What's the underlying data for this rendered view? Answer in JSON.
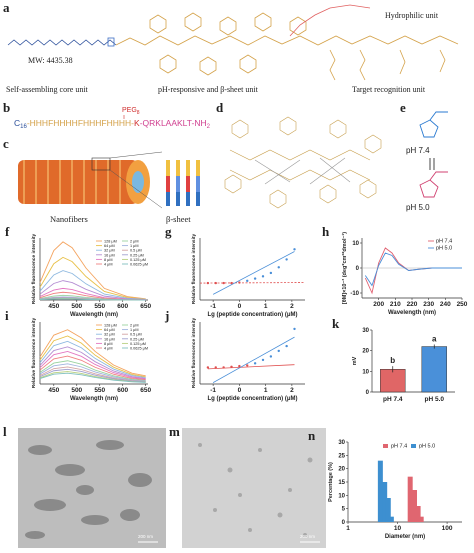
{
  "panel_a": {
    "label": "a",
    "mw": "MW: 4435.38",
    "hydrophilic": "Hydrophilic unit",
    "core": "Self-assembling core unit",
    "ph": "pH-responsive and β-sheet unit",
    "target": "Target recognition unit"
  },
  "panel_b": {
    "label": "b",
    "seq_c": "C",
    "seq_c_sub": "16",
    "seq_main": "-HHHFHHHHFHHHFHHHH-",
    "seq_k": "K",
    "peg": "PEG",
    "peg_sub": "8",
    "seq_end": "-QRKLAAKLT-NH",
    "seq_end_sub": "2"
  },
  "panel_c": {
    "label": "c",
    "nanofibers": "Nanofibers",
    "sheet": "β-sheet"
  },
  "panel_d": {
    "label": "d"
  },
  "panel_e": {
    "label": "e",
    "ph74": "pH 7.4",
    "ph50": "pH 5.0"
  },
  "panel_l": {
    "label": "l",
    "scale": "200 nm"
  },
  "panel_m": {
    "label": "m",
    "scale": "200 nm"
  },
  "chart_data": [
    {
      "type": "line",
      "label": "f",
      "xlabel": "Wavelength (nm)",
      "ylabel": "Relative fluorescence intensity",
      "xlim": [
        420,
        655
      ],
      "ylim": [
        0,
        80
      ],
      "xticks": [
        450,
        500,
        550,
        600,
        650
      ],
      "legend": "top-right",
      "legend_columns": 2,
      "x": [
        420,
        450,
        470,
        490,
        520,
        560,
        610,
        650
      ],
      "series": [
        {
          "name": "128 μM",
          "color": "#f4a460",
          "values": [
            22.5,
            63.8,
            75,
            67.5,
            41.3,
            15,
            4.5,
            1.5
          ]
        },
        {
          "name": "64 μM",
          "color": "#e8c14a",
          "values": [
            16.5,
            46.8,
            55,
            49.5,
            30.3,
            11,
            3.3,
            1.1
          ]
        },
        {
          "name": "32 μM",
          "color": "#8fb9e0",
          "values": [
            11.4,
            32.3,
            38,
            34.2,
            20.9,
            7.6,
            2.3,
            0.8
          ]
        },
        {
          "name": "16 μM",
          "color": "#b58fd3",
          "values": [
            7.5,
            21.3,
            25,
            22.5,
            13.8,
            5,
            1.5,
            0.5
          ]
        },
        {
          "name": "8 μM",
          "color": "#e377c2",
          "values": [
            4.5,
            12.8,
            15,
            13.5,
            8.3,
            3,
            0.9,
            0.3
          ]
        },
        {
          "name": "4 μM",
          "color": "#f08080",
          "values": [
            3,
            8.5,
            10,
            9,
            5.5,
            2,
            0.6,
            0.2
          ]
        },
        {
          "name": "2 μM",
          "color": "#9bd3a0",
          "values": [
            1.8,
            5.1,
            6,
            5.4,
            3.3,
            1.2,
            0.4,
            0.1
          ]
        },
        {
          "name": "1 μM",
          "color": "#a0b4de",
          "values": [
            1.2,
            3.4,
            4,
            3.6,
            2.2,
            0.8,
            0.2,
            0.1
          ]
        },
        {
          "name": "0.5 μM",
          "color": "#d4a5a5",
          "values": [
            0.9,
            2.6,
            3,
            2.7,
            1.7,
            0.6,
            0.2,
            0.1
          ]
        },
        {
          "name": "0.25 μM",
          "color": "#a0a0d0",
          "values": [
            0.8,
            2.1,
            2.5,
            2.3,
            1.4,
            0.5,
            0.2,
            0.1
          ]
        },
        {
          "name": "0.125 μM",
          "color": "#b8d080",
          "values": [
            0.6,
            1.7,
            2,
            1.8,
            1.1,
            0.4,
            0.1,
            0
          ]
        },
        {
          "name": "0.0625 μM",
          "color": "#80c0c0",
          "values": [
            0.5,
            1.3,
            1.5,
            1.4,
            0.8,
            0.3,
            0.1,
            0
          ]
        }
      ]
    },
    {
      "type": "scatter",
      "label": "g",
      "xlabel": "Lg (peptide concentration) (μM)",
      "ylabel": "Relative fluorescence intensity",
      "xlim": [
        -1.5,
        2.5
      ],
      "ylim": [
        -15,
        40
      ],
      "xticks": [
        -1,
        0,
        1,
        2
      ],
      "series": [
        {
          "color": "#e05050",
          "x": [
            -1.2,
            -0.9,
            -0.6,
            -0.3,
            0
          ],
          "values": [
            0,
            0,
            0,
            0,
            0.5
          ]
        },
        {
          "color": "#4a8fd8",
          "x": [
            0.3,
            0.6,
            0.9,
            1.2,
            1.5,
            1.8,
            2.1
          ],
          "values": [
            2,
            4,
            6,
            9,
            14,
            21,
            30
          ]
        }
      ],
      "fits": [
        {
          "color": "#e05050",
          "dashed": true,
          "x": [
            -1.5,
            2.5
          ],
          "values": [
            0,
            0.5
          ]
        },
        {
          "color": "#4a8fd8",
          "dashed": false,
          "x": [
            -1,
            2.1
          ],
          "values": [
            -10,
            28
          ]
        }
      ]
    },
    {
      "type": "line",
      "label": "h",
      "xlabel": "Wavelength (nm)",
      "ylabel": "[θM]×10⁻³ (deg*cm²*dmol⁻¹)",
      "xlim": [
        190,
        250
      ],
      "ylim": [
        -12,
        12
      ],
      "xticks": [
        200,
        210,
        220,
        230,
        240,
        250
      ],
      "yticks": [
        -10,
        0,
        10
      ],
      "legend": "top-right",
      "legend_columns": 1,
      "zero_line": true,
      "x": [
        192,
        196,
        200,
        204,
        208,
        212,
        218,
        224,
        232,
        240,
        250
      ],
      "series": [
        {
          "name": "pH 7.4",
          "color": "#e06070",
          "values": [
            -4,
            -10,
            2,
            8,
            6,
            2,
            -1,
            -0.5,
            0,
            0,
            0
          ]
        },
        {
          "name": "pH 5.0",
          "color": "#4a8fd8",
          "values": [
            -3,
            -7,
            1,
            6,
            5,
            1.5,
            -1,
            -0.5,
            0,
            0,
            0
          ]
        }
      ]
    },
    {
      "type": "line",
      "label": "i",
      "xlabel": "Wavelength (nm)",
      "ylabel": "Relative fluorescence intensity",
      "xlim": [
        420,
        655
      ],
      "ylim": [
        0,
        80
      ],
      "xticks": [
        450,
        500,
        550,
        600,
        650
      ],
      "legend": "top-right",
      "legend_columns": 2,
      "x": [
        420,
        450,
        480,
        510,
        540,
        580,
        620,
        650
      ],
      "series": [
        {
          "name": "128 μM",
          "color": "#f4a460",
          "values": [
            35,
            63,
            70,
            59.5,
            42,
            24.5,
            14,
            10.5
          ]
        },
        {
          "name": "64 μM",
          "color": "#e8c14a",
          "values": [
            31,
            55.8,
            62,
            52.7,
            37.2,
            21.7,
            12.4,
            9.3
          ]
        },
        {
          "name": "32 μM",
          "color": "#8fb9e0",
          "values": [
            27.5,
            49.5,
            55,
            46.8,
            33,
            19.3,
            11,
            8.3
          ]
        },
        {
          "name": "16 μM",
          "color": "#b58fd3",
          "values": [
            24,
            43.2,
            48,
            40.8,
            28.8,
            16.8,
            9.6,
            7.2
          ]
        },
        {
          "name": "8 μM",
          "color": "#e377c2",
          "values": [
            21,
            37.8,
            42,
            35.7,
            25.2,
            14.7,
            8.4,
            6.3
          ]
        },
        {
          "name": "4 μM",
          "color": "#f08080",
          "values": [
            18,
            32.4,
            36,
            30.6,
            21.6,
            12.6,
            7.2,
            5.4
          ]
        },
        {
          "name": "2 μM",
          "color": "#9bd3a0",
          "values": [
            15,
            27,
            30,
            25.5,
            18,
            10.5,
            6,
            4.5
          ]
        },
        {
          "name": "1 μM",
          "color": "#a0b4de",
          "values": [
            13,
            23.4,
            26,
            22.1,
            15.6,
            9.1,
            5.2,
            3.9
          ]
        },
        {
          "name": "0.5 μM",
          "color": "#d4a5a5",
          "values": [
            11,
            19.8,
            22,
            18.7,
            13.2,
            7.7,
            4.4,
            3.3
          ]
        },
        {
          "name": "0.25 μM",
          "color": "#a0a0d0",
          "values": [
            9.5,
            17.1,
            19,
            16.2,
            11.4,
            6.7,
            3.8,
            2.9
          ]
        },
        {
          "name": "0.125 μM",
          "color": "#b8d080",
          "values": [
            8,
            14.4,
            16,
            13.6,
            9.6,
            5.6,
            3.2,
            2.4
          ]
        },
        {
          "name": "0.0625 μM",
          "color": "#80c0c0",
          "values": [
            7,
            12.6,
            14,
            11.9,
            8.4,
            4.9,
            2.8,
            2.1
          ]
        }
      ]
    },
    {
      "type": "scatter",
      "label": "j",
      "xlabel": "Lg (peptide concentration) (μM)",
      "ylabel": "Relative fluorescence intensity",
      "xlim": [
        -1.5,
        2.5
      ],
      "ylim": [
        0,
        90
      ],
      "xticks": [
        -1,
        0,
        1,
        2
      ],
      "series": [
        {
          "color": "#e05050",
          "x": [
            -1.2,
            -0.9,
            -0.6,
            -0.3,
            0,
            0.3
          ],
          "values": [
            24,
            24,
            24,
            25,
            26,
            27
          ]
        },
        {
          "color": "#4a8fd8",
          "x": [
            0.6,
            0.9,
            1.2,
            1.5,
            1.8,
            2.1
          ],
          "values": [
            30,
            35,
            40,
            48,
            55,
            80
          ]
        }
      ],
      "fits": [
        {
          "color": "#e05050",
          "dashed": false,
          "x": [
            -1.2,
            2.1
          ],
          "values": [
            22,
            28
          ]
        },
        {
          "color": "#4a8fd8",
          "dashed": false,
          "x": [
            -1,
            2.1
          ],
          "values": [
            2,
            68
          ]
        }
      ]
    },
    {
      "type": "bar",
      "label": "k",
      "ylabel": "mV",
      "ylim": [
        0,
        30
      ],
      "yticks": [
        0,
        10,
        20,
        30
      ],
      "categories": [
        "pH 7.4",
        "pH 5.0"
      ],
      "values": [
        11,
        22
      ],
      "errors": [
        1.5,
        1
      ],
      "colors": [
        "#e06666",
        "#4a90d9"
      ],
      "annotations": [
        "b",
        "a"
      ]
    },
    {
      "type": "bar",
      "label": "n",
      "xlabel": "Diameter (nm)",
      "ylabel": "Percentage (%)",
      "log_x": true,
      "xlim": [
        1,
        200
      ],
      "xticks": [
        1,
        10,
        100
      ],
      "ylim": [
        0,
        30
      ],
      "yticks": [
        0,
        5,
        10,
        15,
        20,
        25,
        30
      ],
      "legend": "top",
      "series": [
        {
          "name": "pH 7.4",
          "color": "#e06670",
          "x": [
            18,
            22,
            26,
            30
          ],
          "values": [
            17,
            12,
            6,
            2
          ]
        },
        {
          "name": "pH 5.0",
          "color": "#3d8fd0",
          "x": [
            4.5,
            5.5,
            6.5,
            7.5
          ],
          "values": [
            23,
            15,
            9,
            2
          ]
        }
      ]
    }
  ]
}
